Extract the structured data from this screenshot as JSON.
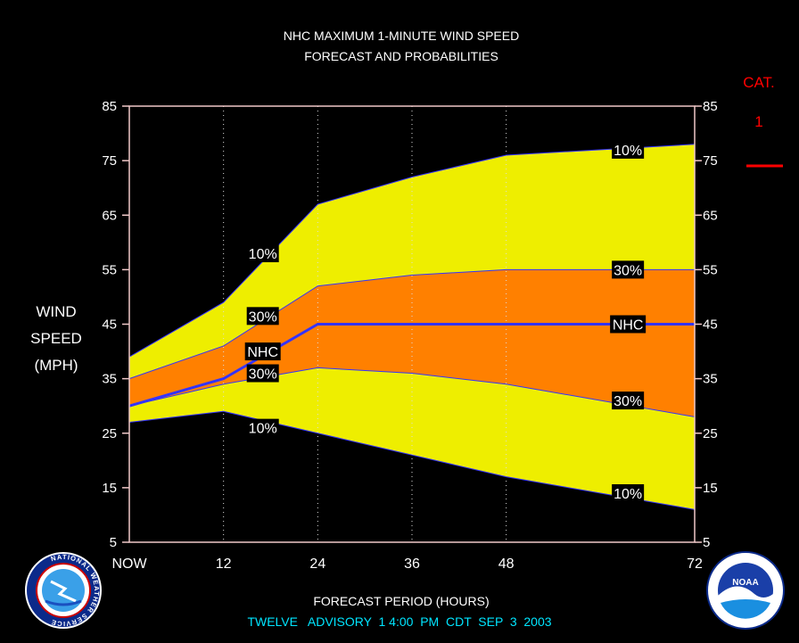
{
  "chart_data": {
    "type": "area",
    "title_line1": "NHC MAXIMUM 1-MINUTE WIND SPEED",
    "title_line2": "FORECAST AND PROBABILITIES",
    "ylabel_lines": [
      "WIND",
      "SPEED",
      "(MPH)"
    ],
    "xlabel": "FORECAST PERIOD (HOURS)",
    "footer": "TWELVE   ADVISORY  1 4:00  PM  CDT  SEP  3  2003",
    "category": {
      "label": "CAT.",
      "value": "1",
      "color": "#ff0000"
    },
    "ylim": [
      5,
      85
    ],
    "xlim": [
      0,
      72
    ],
    "yticks": [
      5,
      15,
      25,
      35,
      45,
      55,
      65,
      75,
      85
    ],
    "xticks": [
      {
        "x": 0,
        "label": "NOW"
      },
      {
        "x": 12,
        "label": "12"
      },
      {
        "x": 24,
        "label": "24"
      },
      {
        "x": 36,
        "label": "36"
      },
      {
        "x": 48,
        "label": "48"
      },
      {
        "x": 72,
        "label": "72"
      }
    ],
    "x": [
      0,
      12,
      24,
      36,
      48,
      72
    ],
    "series": [
      {
        "name": "10%",
        "band": "upper",
        "values": [
          39,
          49,
          67,
          72,
          76,
          78
        ]
      },
      {
        "name": "30%",
        "band": "upper",
        "values": [
          35,
          41,
          52,
          54,
          55,
          55
        ]
      },
      {
        "name": "NHC",
        "band": "forecast",
        "values": [
          30,
          35,
          45,
          45,
          45,
          45
        ]
      },
      {
        "name": "30%",
        "band": "lower",
        "values": [
          30,
          34,
          37,
          36,
          34,
          28
        ]
      },
      {
        "name": "10%",
        "band": "lower",
        "values": [
          27,
          29,
          25,
          21,
          17,
          11
        ]
      }
    ],
    "labels": [
      {
        "text": "10%",
        "x": 17,
        "y": 58
      },
      {
        "text": "30%",
        "x": 17,
        "y": 46.5
      },
      {
        "text": "NHC",
        "x": 17,
        "y": 40
      },
      {
        "text": "30%",
        "x": 17,
        "y": 36
      },
      {
        "text": "10%",
        "x": 17,
        "y": 26
      },
      {
        "text": "10%",
        "x": 63.5,
        "y": 77
      },
      {
        "text": "30%",
        "x": 63.5,
        "y": 55
      },
      {
        "text": "NHC",
        "x": 63.5,
        "y": 45
      },
      {
        "text": "30%",
        "x": 63.5,
        "y": 31
      },
      {
        "text": "10%",
        "x": 63.5,
        "y": 14
      }
    ],
    "colors": {
      "outer_band": "#eeee00",
      "inner_band": "#ff8000",
      "forecast_line": "#3333ff",
      "axis_text": "#ffffff",
      "footer_text": "#00e5ff",
      "plot_frame": "#f0c8c8",
      "grid": "#dddddd"
    },
    "grid": "vertical-dotted",
    "logos": {
      "left": "NATIONAL WEATHER SERVICE",
      "right": "NOAA"
    }
  }
}
